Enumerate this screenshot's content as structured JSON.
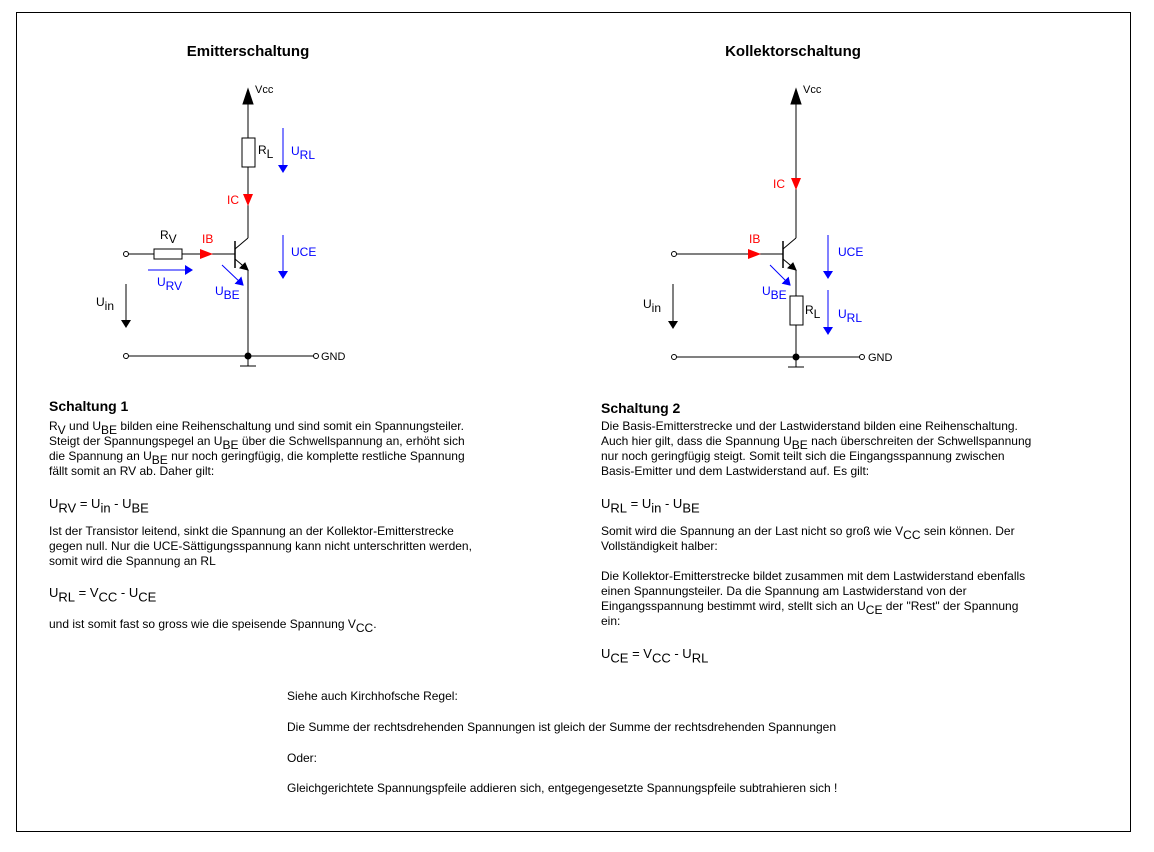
{
  "colors": {
    "current": "#ff0000",
    "voltage": "#0000ff",
    "wire": "#000000"
  },
  "left": {
    "title": "Emitterschaltung",
    "labels": {
      "vcc": [
        {
          "t": "Vcc"
        }
      ],
      "rl": [
        {
          "t": "R"
        },
        {
          "s": "L"
        }
      ],
      "url": [
        {
          "t": "U"
        },
        {
          "s": "RL"
        }
      ],
      "ic": [
        {
          "t": "IC"
        }
      ],
      "rv": [
        {
          "t": "R"
        },
        {
          "s": "V"
        }
      ],
      "ib": [
        {
          "t": "IB"
        }
      ],
      "uce": [
        {
          "t": "UCE"
        }
      ],
      "urv": [
        {
          "t": "U"
        },
        {
          "s": "RV"
        }
      ],
      "ube": [
        {
          "t": "U"
        },
        {
          "s": "BE"
        }
      ],
      "uin": [
        {
          "t": "U"
        },
        {
          "s": "in"
        }
      ],
      "gnd": [
        {
          "t": "GND"
        }
      ]
    },
    "heading": "Schaltung 1",
    "lines": [
      [
        {
          "t": "R"
        },
        {
          "s": "V"
        },
        {
          "t": " und U"
        },
        {
          "s": "BE"
        },
        {
          "t": " bilden eine Reihenschaltung und sind somit ein Spannungsteiler."
        }
      ],
      [
        {
          "t": "Steigt der Spannungspegel an U"
        },
        {
          "s": "BE"
        },
        {
          "t": " über die Schwellspannung an, erhöht sich"
        }
      ],
      [
        {
          "t": "die Spannung an U"
        },
        {
          "s": "BE"
        },
        {
          "t": " nur noch geringfügig, die komplette restliche Spannung"
        }
      ],
      [
        {
          "t": "fällt somit an RV ab. Daher gilt:"
        }
      ],
      [
        {
          "t": "U"
        },
        {
          "s": "RV"
        },
        {
          "t": " = U"
        },
        {
          "s": "in"
        },
        {
          "t": " - U"
        },
        {
          "s": "BE"
        }
      ],
      [
        {
          "t": "Ist der Transistor leitend, sinkt die Spannung an der Kollektor-Emitterstrecke"
        }
      ],
      [
        {
          "t": "gegen null. Nur die UCE-Sättigungsspannung kann nicht unterschritten werden,"
        }
      ],
      [
        {
          "t": "somit wird die Spannung an RL"
        }
      ],
      [
        {
          "t": "U"
        },
        {
          "s": "RL"
        },
        {
          "t": " = V"
        },
        {
          "s": "CC"
        },
        {
          "t": " - U"
        },
        {
          "s": "CE"
        }
      ],
      [
        {
          "t": "und ist somit fast so gross wie die speisende Spannung V"
        },
        {
          "s": "CC"
        },
        {
          "t": "."
        }
      ]
    ]
  },
  "right": {
    "title": "Kollektorschaltung",
    "labels": {
      "vcc": [
        {
          "t": "Vcc"
        }
      ],
      "ic": [
        {
          "t": "IC"
        }
      ],
      "ib": [
        {
          "t": "IB"
        }
      ],
      "uce": [
        {
          "t": "UCE"
        }
      ],
      "ube": [
        {
          "t": "U"
        },
        {
          "s": "BE"
        }
      ],
      "rl": [
        {
          "t": "R"
        },
        {
          "s": "L"
        }
      ],
      "url": [
        {
          "t": "U"
        },
        {
          "s": "RL"
        }
      ],
      "uin": [
        {
          "t": "U"
        },
        {
          "s": "in"
        }
      ],
      "gnd": [
        {
          "t": "GND"
        }
      ]
    },
    "heading": "Schaltung 2",
    "lines": [
      [
        {
          "t": "Die Basis-Emitterstrecke und der Lastwiderstand bilden eine Reihenschaltung."
        }
      ],
      [
        {
          "t": "Auch hier gilt, dass die Spannung U"
        },
        {
          "s": "BE"
        },
        {
          "t": " nach überschreiten der Schwellspannung"
        }
      ],
      [
        {
          "t": "nur noch geringfügig steigt. Somit teilt sich die Eingangsspannung zwischen"
        }
      ],
      [
        {
          "t": "Basis-Emitter und dem Lastwiderstand auf. Es gilt:"
        }
      ],
      [
        {
          "t": "U"
        },
        {
          "s": "RL"
        },
        {
          "t": " = U"
        },
        {
          "s": "in"
        },
        {
          "t": " - U"
        },
        {
          "s": "BE"
        }
      ],
      [
        {
          "t": "Somit wird die Spannung an der Last nicht so groß wie V"
        },
        {
          "s": "CC"
        },
        {
          "t": " sein können. Der"
        }
      ],
      [
        {
          "t": "Vollständigkeit halber:"
        }
      ],
      [
        {
          "t": "Die Kollektor-Emitterstrecke bildet zusammen mit dem Lastwiderstand ebenfalls"
        }
      ],
      [
        {
          "t": "einen Spannungsteiler. Da die Spannung am Lastwiderstand von der"
        }
      ],
      [
        {
          "t": "Eingangsspannung bestimmt wird, stellt sich an U"
        },
        {
          "s": "CE"
        },
        {
          "t": " der \"Rest\" der Spannung"
        }
      ],
      [
        {
          "t": "ein:"
        }
      ],
      [
        {
          "t": "U"
        },
        {
          "s": "CE"
        },
        {
          "t": " = V"
        },
        {
          "s": "CC"
        },
        {
          "t": " - U"
        },
        {
          "s": "RL"
        }
      ]
    ]
  },
  "footer": {
    "lines": [
      "Siehe auch Kirchhofsche Regel:",
      "Die Summe der rechtsdrehenden Spannungen ist gleich der Summe der rechtsdrehenden Spannungen",
      "Oder:",
      "Gleichgerichtete Spannungspfeile addieren sich, entgegengesetzte Spannungspfeile subtrahieren sich !"
    ]
  }
}
